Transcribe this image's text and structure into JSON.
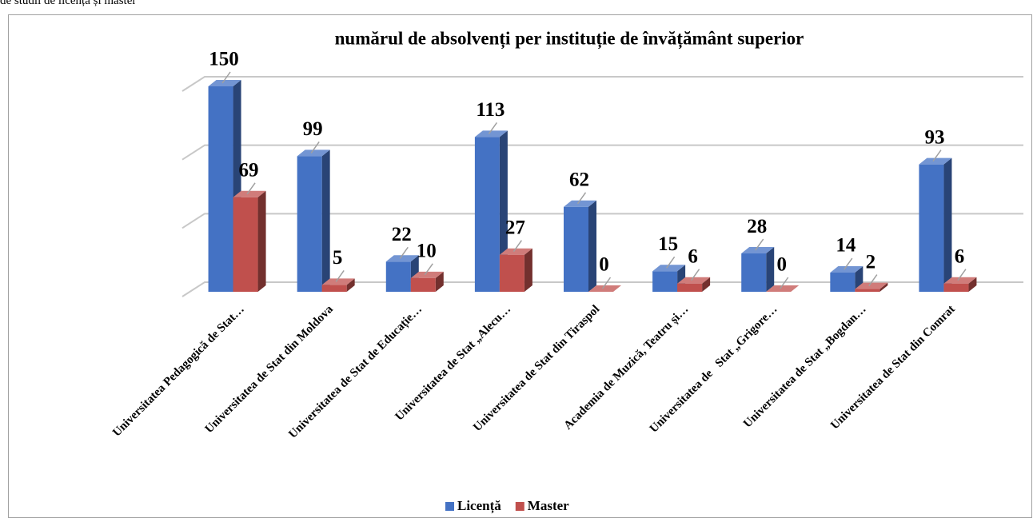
{
  "header_text": "de studii de licență și master",
  "chart_data": {
    "type": "bar3d",
    "title": "numărul de absolvenți per instituție de învățământ superior",
    "categories": [
      "Universitatea Pedagogică de Stat…",
      "Universitatea de Stat din Moldova",
      "Universitatea de Stat de Educație…",
      "Universitatea de Stat „Alecu…",
      "Universitatea de Stat din Tiraspol",
      "Academia de Muzică, Teatru și…",
      "Universitatea de   Stat „Grigore…",
      "Universitatea de Stat „Bogdan…",
      "Universitatea de Stat din Comrat"
    ],
    "series": [
      {
        "name": "Licență",
        "color": "#4472c4",
        "values": [
          150,
          99,
          22,
          113,
          62,
          15,
          28,
          14,
          93
        ]
      },
      {
        "name": "Master",
        "color": "#c0504d",
        "values": [
          69,
          5,
          10,
          27,
          0,
          6,
          0,
          2,
          6
        ]
      }
    ],
    "ylim": [
      0,
      150
    ],
    "yticks": [
      0,
      50,
      100,
      150
    ],
    "grid": true,
    "legend": "bottom"
  }
}
